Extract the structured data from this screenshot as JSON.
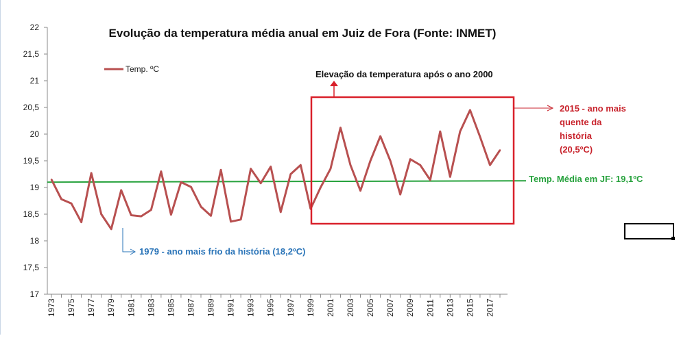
{
  "chart_data": {
    "type": "line",
    "title": "Evolução da temperatura média anual em Juiz de Fora (Fonte: INMET)",
    "xlabel": "",
    "ylabel": "",
    "ylim": [
      17,
      22
    ],
    "y_ticks": [
      "17",
      "17,5",
      "18",
      "18,5",
      "19",
      "19,5",
      "20",
      "20,5",
      "21",
      "21,5",
      "22"
    ],
    "x_tick_labels": [
      "1973",
      "1975",
      "1977",
      "1979",
      "1981",
      "1983",
      "1985",
      "1987",
      "1989",
      "1991",
      "1993",
      "1995",
      "1997",
      "1999",
      "2001",
      "2003",
      "2005",
      "2007",
      "2009",
      "2011",
      "2013",
      "2015",
      "2017"
    ],
    "x": [
      1973,
      1974,
      1975,
      1976,
      1977,
      1978,
      1979,
      1980,
      1981,
      1982,
      1983,
      1984,
      1985,
      1986,
      1987,
      1988,
      1989,
      1990,
      1991,
      1992,
      1993,
      1994,
      1995,
      1996,
      1997,
      1998,
      1999,
      2000,
      2001,
      2002,
      2003,
      2004,
      2005,
      2006,
      2007,
      2008,
      2009,
      2010,
      2011,
      2012,
      2013,
      2014,
      2015,
      2016,
      2017,
      2018
    ],
    "series": [
      {
        "name": "Temp. ºC",
        "color": "#b85050",
        "values": [
          19.15,
          18.78,
          18.7,
          18.35,
          19.27,
          18.5,
          18.22,
          18.95,
          18.48,
          18.46,
          18.58,
          19.3,
          18.49,
          19.1,
          19.01,
          18.64,
          18.47,
          19.33,
          18.36,
          18.4,
          19.35,
          19.08,
          19.39,
          18.54,
          19.25,
          19.42,
          18.6,
          19.0,
          19.35,
          20.12,
          19.42,
          18.94,
          19.5,
          19.96,
          19.5,
          18.87,
          19.53,
          19.42,
          19.14,
          20.05,
          19.2,
          20.05,
          20.45,
          19.95,
          19.42,
          19.7
        ]
      }
    ],
    "mean_line": {
      "value": 19.1,
      "color": "#27a23d",
      "label": "Temp. Média em JF: 19,1ºC"
    },
    "legend": {
      "position": "top-left",
      "label": "Temp. ºC"
    },
    "annotations": {
      "elevation": {
        "text": "Elevação da temperatura após o ano 2000",
        "color": "#111111",
        "box_color": "#d9202a"
      },
      "hottest": {
        "lines": [
          "2015 - ano mais",
          "quente da",
          "história",
          "(20,5ºC)"
        ],
        "color": "#c8232c"
      },
      "coldest": {
        "text": "1979 - ano mais frio da história (18,2ºC)",
        "color": "#2a74b8"
      }
    },
    "grid": false
  }
}
